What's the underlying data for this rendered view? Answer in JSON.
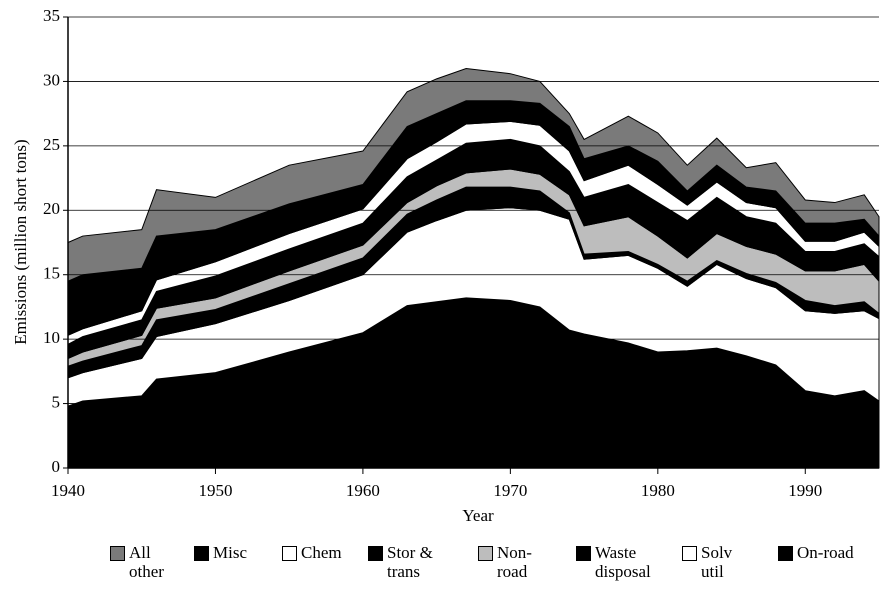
{
  "chart_data": {
    "type": "stacked_area",
    "xlabel": "Year",
    "ylabel": "Emissions (million short tons)",
    "x": [
      1940,
      1941,
      1945,
      1946,
      1950,
      1955,
      1960,
      1963,
      1965,
      1967,
      1970,
      1972,
      1974,
      1975,
      1978,
      1980,
      1982,
      1984,
      1986,
      1988,
      1990,
      1992,
      1994,
      1995
    ],
    "xlim": [
      1940,
      1995
    ],
    "xticks": [
      1940,
      1950,
      1960,
      1970,
      1980,
      1990
    ],
    "ylim": [
      0,
      35
    ],
    "yticks": [
      0,
      5,
      10,
      15,
      20,
      25,
      30,
      35
    ],
    "grid": true,
    "series": [
      {
        "name": "On-road",
        "color": "#000000",
        "values": [
          4.8,
          5.2,
          5.6,
          6.9,
          7.4,
          9.0,
          10.5,
          12.6,
          12.9,
          13.2,
          13.0,
          12.5,
          10.7,
          10.4,
          9.7,
          9.0,
          9.1,
          9.3,
          8.7,
          8.0,
          6.0,
          5.6,
          6.0,
          5.2
        ]
      },
      {
        "name": "Solv util",
        "color": "#ffffff",
        "values": [
          2.2,
          2.2,
          2.9,
          3.3,
          3.8,
          4.0,
          4.5,
          5.7,
          6.3,
          6.8,
          7.2,
          7.5,
          8.6,
          5.8,
          6.8,
          6.5,
          5.0,
          6.5,
          6.0,
          6.0,
          6.2,
          6.4,
          6.2,
          6.4
        ]
      },
      {
        "name": "Waste disposal",
        "color": "#000000",
        "values": [
          0.9,
          0.9,
          1.0,
          1.3,
          1.1,
          1.3,
          1.3,
          1.4,
          1.6,
          1.8,
          1.6,
          1.5,
          0.5,
          0.4,
          0.3,
          0.3,
          0.4,
          0.3,
          0.4,
          0.4,
          0.8,
          0.6,
          0.7,
          0.4
        ]
      },
      {
        "name": "Non-road",
        "color": "#bdbdbd",
        "values": [
          0.6,
          0.7,
          0.8,
          0.9,
          0.9,
          1.0,
          1.0,
          0.9,
          1.1,
          1.1,
          1.4,
          1.3,
          1.4,
          2.2,
          2.7,
          2.2,
          1.8,
          2.1,
          2.1,
          2.2,
          2.3,
          2.7,
          2.9,
          2.5
        ]
      },
      {
        "name": "Stor & trans",
        "color": "#000000",
        "values": [
          1.1,
          1.2,
          1.2,
          1.3,
          1.7,
          1.7,
          1.7,
          2.0,
          2.0,
          2.3,
          2.3,
          2.2,
          1.8,
          2.2,
          2.5,
          2.6,
          2.9,
          2.8,
          2.3,
          2.4,
          1.5,
          1.5,
          1.6,
          1.9
        ]
      },
      {
        "name": "Chem",
        "color": "#ffffff",
        "values": [
          0.7,
          0.6,
          0.7,
          0.9,
          1.1,
          1.2,
          1.1,
          1.4,
          1.4,
          1.5,
          1.4,
          1.6,
          1.6,
          1.3,
          1.5,
          1.4,
          1.2,
          1.2,
          1.1,
          1.2,
          0.8,
          0.8,
          0.9,
          0.8
        ]
      },
      {
        "name": "Misc",
        "color": "#000000",
        "values": [
          4.2,
          4.2,
          3.3,
          3.4,
          2.5,
          2.3,
          1.9,
          2.5,
          2.2,
          1.8,
          1.6,
          1.7,
          1.9,
          1.7,
          1.5,
          1.8,
          1.1,
          1.3,
          1.2,
          1.3,
          1.4,
          1.4,
          1.0,
          0.8
        ]
      },
      {
        "name": "All other",
        "color": "#7a7a7a",
        "values": [
          3.0,
          3.0,
          3.0,
          3.6,
          2.5,
          3.0,
          2.6,
          2.7,
          2.7,
          2.5,
          2.1,
          1.7,
          1.0,
          1.5,
          2.3,
          2.2,
          2.0,
          2.1,
          1.5,
          2.2,
          1.8,
          1.6,
          1.9,
          1.5
        ]
      }
    ]
  }
}
